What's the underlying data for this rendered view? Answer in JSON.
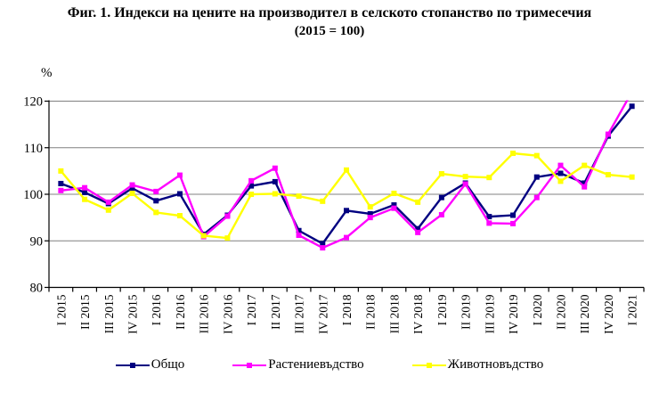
{
  "chart_data": {
    "type": "line",
    "title": "Фиг. 1. Индекси на цените на производител в селското стопанство по тримесечия",
    "subtitle": "(2015 = 100)",
    "ylabel": "%",
    "xlabel": "",
    "ylim": [
      80,
      120
    ],
    "yticks": [
      80,
      90,
      100,
      110,
      120
    ],
    "grid": true,
    "legend_position": "bottom",
    "gridline_color": "#808080",
    "axis_color": "#000000",
    "categories": [
      "I 2015",
      "II 2015",
      "III 2015",
      "IV 2015",
      "I 2016",
      "II 2016",
      "III 2016",
      "IV 2016",
      "I 2017",
      "II 2017",
      "III 2017",
      "IV 2017",
      "I 2018",
      "II 2018",
      "III 2018",
      "IV 2018",
      "I 2019",
      "II 2019",
      "III 2019",
      "IV 2019",
      "I 2020",
      "II 2020",
      "III 2020",
      "IV 2020",
      "I 2021"
    ],
    "series": [
      {
        "name": "Общо",
        "color": "#000080",
        "values": [
          102.3,
          100.4,
          98.0,
          101.3,
          98.6,
          100.1,
          91.4,
          95.5,
          101.8,
          102.7,
          92.2,
          89.4,
          96.5,
          95.8,
          97.7,
          92.6,
          99.3,
          102.4,
          95.2,
          95.5,
          103.7,
          104.5,
          102.4,
          112.5,
          118.9
        ]
      },
      {
        "name": "Растениевъдство",
        "color": "#FF00FF",
        "values": [
          100.8,
          101.4,
          98.3,
          102.0,
          100.6,
          104.1,
          90.9,
          95.3,
          102.9,
          105.6,
          91.2,
          88.5,
          90.7,
          95.0,
          97.0,
          91.8,
          95.6,
          102.2,
          93.8,
          93.7,
          99.3,
          106.2,
          101.6,
          112.9,
          122.0
        ]
      },
      {
        "name": "Животновъдство",
        "color": "#FFFF00",
        "values": [
          105.0,
          98.9,
          96.6,
          100.2,
          96.1,
          95.4,
          91.1,
          90.6,
          100.0,
          100.1,
          99.6,
          98.5,
          105.2,
          97.3,
          100.2,
          98.3,
          104.4,
          103.8,
          103.6,
          108.8,
          108.3,
          102.8,
          106.2,
          104.2,
          103.7
        ]
      }
    ]
  }
}
